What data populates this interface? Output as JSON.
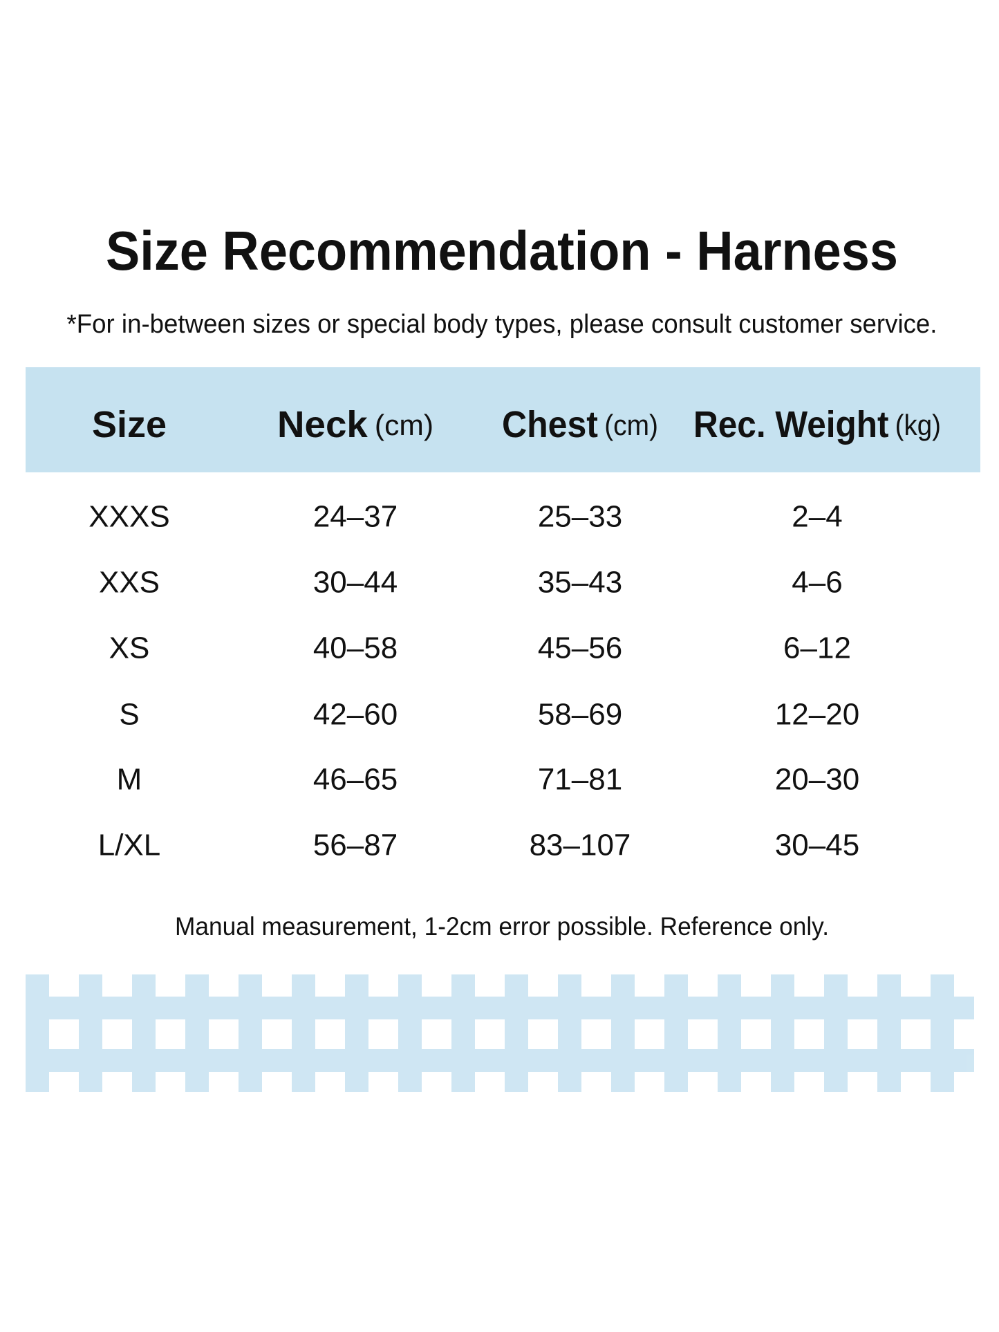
{
  "header": {
    "title": "Size Recommendation - Harness",
    "subtitle": "*For in-between sizes or special body types, please consult customer service."
  },
  "table": {
    "columns": [
      {
        "label": "Size"
      },
      {
        "label": "Neck",
        "unit": "(cm)"
      },
      {
        "label": "Chest",
        "unit": "(cm)"
      },
      {
        "label": "Rec. Weight",
        "unit": "(kg)"
      }
    ],
    "rows": [
      [
        "XXXS",
        "24–37",
        "25–33",
        "2–4"
      ],
      [
        "XXS",
        "30–44",
        "35–43",
        "4–6"
      ],
      [
        "XS",
        "40–58",
        "45–56",
        "6–12"
      ],
      [
        "S",
        "42–60",
        "58–69",
        "12–20"
      ],
      [
        "M",
        "46–65",
        "71–81",
        "20–30"
      ],
      [
        "L/XL",
        "56–87",
        "83–107",
        "30–45"
      ]
    ]
  },
  "footer": {
    "note": "Manual measurement, 1-2cm error possible. Reference only."
  }
}
